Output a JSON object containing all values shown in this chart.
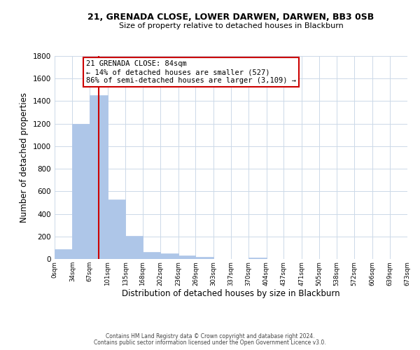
{
  "title1": "21, GRENADA CLOSE, LOWER DARWEN, DARWEN, BB3 0SB",
  "title2": "Size of property relative to detached houses in Blackburn",
  "xlabel": "Distribution of detached houses by size in Blackburn",
  "ylabel": "Number of detached properties",
  "bar_edges": [
    0,
    34,
    67,
    101,
    135,
    168,
    202,
    236,
    269,
    303,
    337,
    370,
    404,
    437,
    471,
    505,
    538,
    572,
    606,
    639,
    673
  ],
  "bar_heights": [
    90,
    1200,
    1450,
    530,
    205,
    65,
    48,
    30,
    20,
    0,
    0,
    15,
    0,
    0,
    0,
    0,
    0,
    0,
    0,
    0
  ],
  "bar_color": "#aec6e8",
  "bar_edge_color": "#aec6e8",
  "vline_x": 84,
  "vline_color": "#cc0000",
  "annotation_title": "21 GRENADA CLOSE: 84sqm",
  "annotation_line1": "← 14% of detached houses are smaller (527)",
  "annotation_line2": "86% of semi-detached houses are larger (3,109) →",
  "annotation_box_color": "#ffffff",
  "annotation_box_edge": "#cc0000",
  "xlim": [
    0,
    673
  ],
  "ylim": [
    0,
    1800
  ],
  "yticks": [
    0,
    200,
    400,
    600,
    800,
    1000,
    1200,
    1400,
    1600,
    1800
  ],
  "xtick_labels": [
    "0sqm",
    "34sqm",
    "67sqm",
    "101sqm",
    "135sqm",
    "168sqm",
    "202sqm",
    "236sqm",
    "269sqm",
    "303sqm",
    "337sqm",
    "370sqm",
    "404sqm",
    "437sqm",
    "471sqm",
    "505sqm",
    "538sqm",
    "572sqm",
    "606sqm",
    "639sqm",
    "673sqm"
  ],
  "xtick_positions": [
    0,
    34,
    67,
    101,
    135,
    168,
    202,
    236,
    269,
    303,
    337,
    370,
    404,
    437,
    471,
    505,
    538,
    572,
    606,
    639,
    673
  ],
  "footer1": "Contains HM Land Registry data © Crown copyright and database right 2024.",
  "footer2": "Contains public sector information licensed under the Open Government Licence v3.0.",
  "background_color": "#ffffff",
  "grid_color": "#ccd9e8"
}
